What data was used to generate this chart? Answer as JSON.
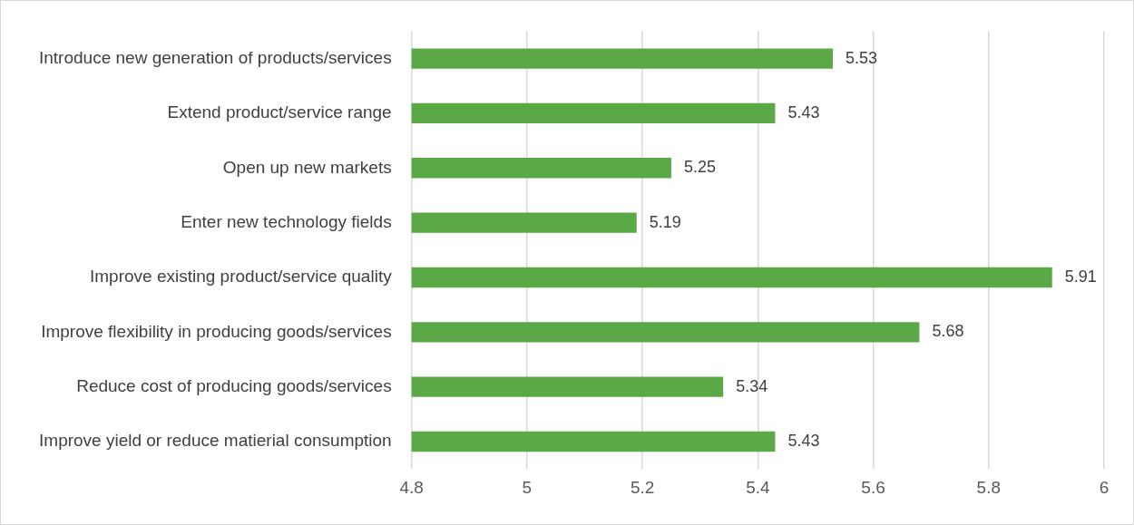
{
  "chart_data": {
    "type": "bar",
    "orientation": "horizontal",
    "categories": [
      "Introduce new generation of products/services",
      "Extend product/service range",
      "Open up new markets",
      "Enter new technology fields",
      "Improve existing product/service quality",
      "Improve flexibility in producing goods/services",
      "Reduce cost of producing goods/services",
      "Improve yield or reduce matierial consumption"
    ],
    "values": [
      5.53,
      5.43,
      5.25,
      5.19,
      5.91,
      5.68,
      5.34,
      5.43
    ],
    "color": "#5ba946",
    "xlim": [
      4.8,
      6
    ],
    "xticks": [
      4.8,
      5,
      5.2,
      5.4,
      5.6,
      5.8,
      6
    ],
    "grid": "x",
    "data_labels": true,
    "legend": false
  }
}
